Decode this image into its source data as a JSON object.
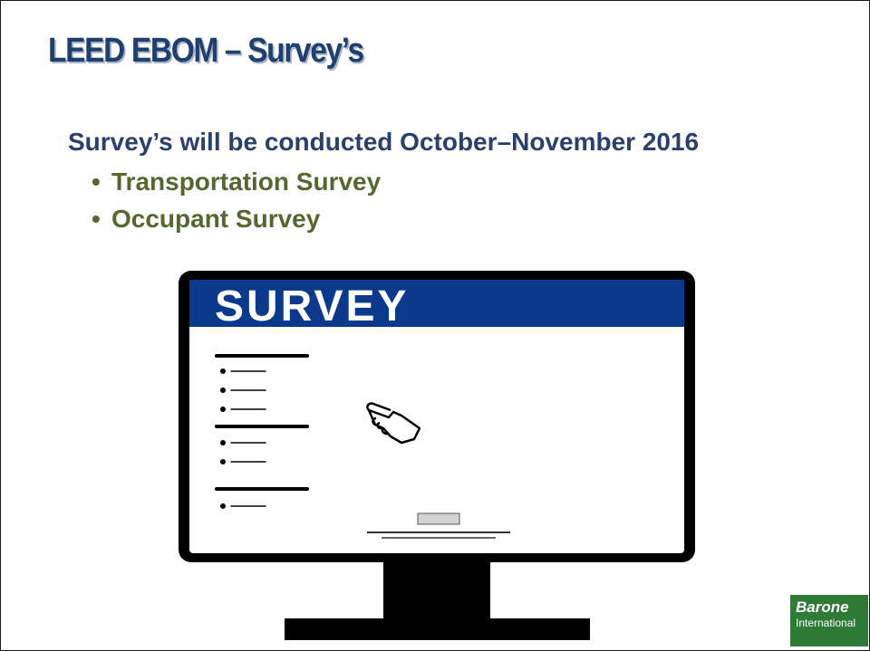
{
  "slide": {
    "title": "LEED EBOM – Survey’s",
    "subtitle": "Survey’s will be conducted October–November 2016",
    "bullets": [
      "Transportation Survey",
      "Occupant Survey"
    ],
    "bullet_symbol": "•"
  },
  "illustration": {
    "screen_header": "SURVEY",
    "header_color": "#0b3a8c",
    "icons": [
      "monitor-icon",
      "pointing-hand-icon"
    ]
  },
  "logo": {
    "line1": "Barone",
    "line2": "International",
    "color": "#2f7a36"
  },
  "colors": {
    "title": "#1f3f6e",
    "subtitle": "#2a3f6e",
    "bullets": "#55672f"
  }
}
